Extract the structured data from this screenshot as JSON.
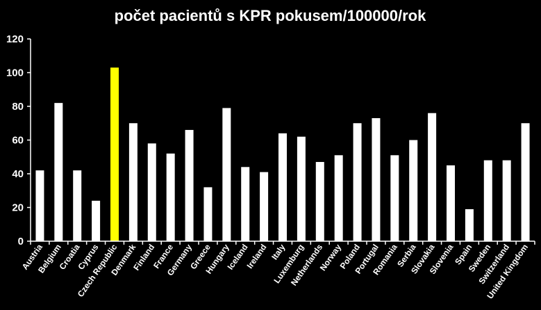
{
  "chart_data": {
    "type": "bar",
    "title": "počet pacientů s KPR pokusem/100000/rok",
    "xlabel": "",
    "ylabel": "",
    "ylim": [
      0,
      120
    ],
    "yticks": [
      0,
      20,
      40,
      60,
      80,
      100,
      120
    ],
    "grid": false,
    "categories": [
      "Austria",
      "Belgium",
      "Croatia",
      "Cyprus",
      "Czech Republic",
      "Denmark",
      "Finland",
      "France",
      "Germany",
      "Greece",
      "Hungary",
      "Iceland",
      "Ireland",
      "Italy",
      "Luxemburg",
      "Netherlands",
      "Norway",
      "Poland",
      "Portugal",
      "Romania",
      "Serbia",
      "Slovakia",
      "Slovenia",
      "Spain",
      "Sweden",
      "Switzerland",
      "United Kingdom"
    ],
    "values": [
      42,
      82,
      42,
      24,
      103,
      70,
      58,
      52,
      66,
      32,
      79,
      44,
      41,
      64,
      62,
      47,
      51,
      70,
      73,
      51,
      60,
      76,
      45,
      19,
      48,
      48,
      70
    ],
    "colors": {
      "default_bar": "#ffffff",
      "highlight_bar": "#ffff00",
      "background": "#000000",
      "text": "#ffffff"
    },
    "highlight_category": "Czech Republic"
  }
}
